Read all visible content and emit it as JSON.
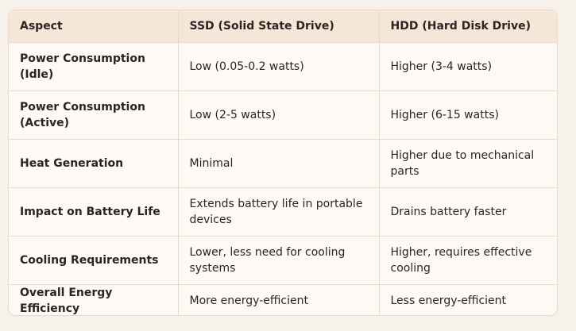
{
  "table": {
    "headers": [
      "Aspect",
      "SSD (Solid State Drive)",
      "HDD (Hard Disk Drive)"
    ],
    "rows": [
      [
        "Power Consumption (Idle)",
        "Low (0.05-0.2 watts)",
        "Higher (3-4 watts)"
      ],
      [
        "Power Consumption (Active)",
        "Low (2-5 watts)",
        "Higher (6-15 watts)"
      ],
      [
        "Heat Generation",
        "Minimal",
        "Higher due to mechanical parts"
      ],
      [
        "Impact on Battery Life",
        "Extends battery life in portable devices",
        "Drains battery faster"
      ],
      [
        "Cooling Requirements",
        "Lower, less need for cooling systems",
        "Higher, requires effective cooling"
      ],
      [
        "Overall Energy Efficiency",
        "More energy-efficient",
        "Less energy-efficient"
      ]
    ]
  }
}
